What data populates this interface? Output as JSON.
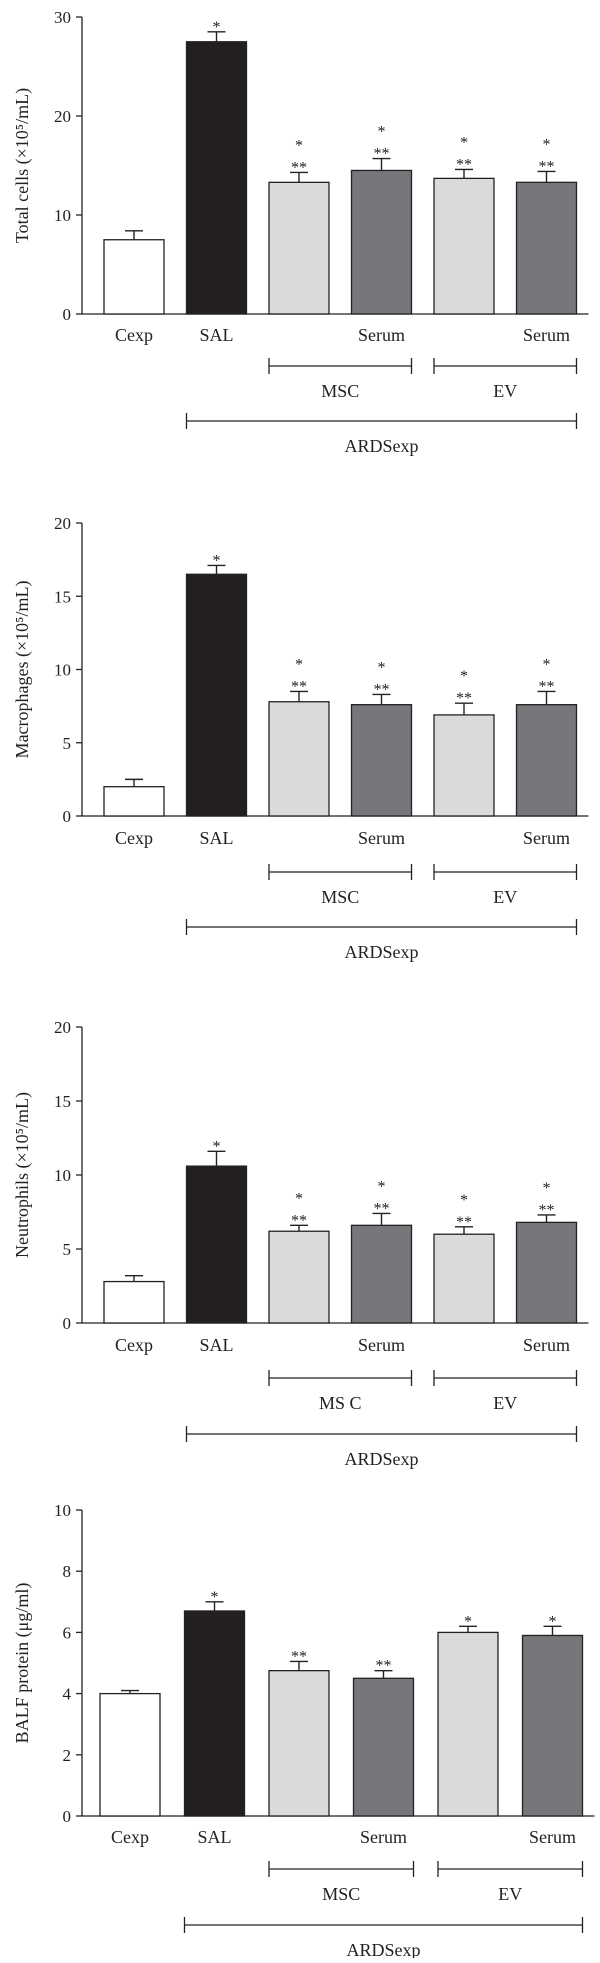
{
  "chart_data": [
    {
      "type": "bar",
      "ylabel": "Total cells (×10⁵/mL)",
      "ylim": [
        0,
        30
      ],
      "yticks": [
        0,
        10,
        20,
        30
      ],
      "categories": [
        "Cexp",
        "SAL",
        "",
        "Serum",
        "",
        "Serum"
      ],
      "values": [
        7.5,
        27.5,
        13.3,
        14.5,
        13.7,
        13.3
      ],
      "errors": [
        0.9,
        1.0,
        1.0,
        1.2,
        0.9,
        1.1
      ],
      "significance": [
        [],
        [
          "*"
        ],
        [
          "*",
          "**"
        ],
        [
          "*",
          "**"
        ],
        [
          "*",
          "**"
        ],
        [
          "*",
          "**"
        ]
      ],
      "colors": [
        "#ffffff",
        "#231f20",
        "#d9dadb",
        "#76777a",
        "#d9dadb",
        "#76777a"
      ],
      "groups": [
        {
          "label": "MSC",
          "from": 2,
          "to": 3,
          "level": 1
        },
        {
          "label": "EV",
          "from": 4,
          "to": 5,
          "level": 1
        },
        {
          "label": "ARDSexp",
          "from": 1,
          "to": 5,
          "level": 2
        }
      ]
    },
    {
      "type": "bar",
      "ylabel": "Macrophages (×10⁵/mL)",
      "ylim": [
        0,
        20
      ],
      "yticks": [
        0,
        5,
        10,
        15,
        20
      ],
      "categories": [
        "Cexp",
        "SAL",
        "",
        "Serum",
        "",
        "Serum"
      ],
      "values": [
        2.0,
        16.5,
        7.8,
        7.6,
        6.9,
        7.6
      ],
      "errors": [
        0.5,
        0.6,
        0.7,
        0.7,
        0.8,
        0.9
      ],
      "significance": [
        [],
        [
          "*"
        ],
        [
          "*",
          "**"
        ],
        [
          "*",
          "**"
        ],
        [
          "*",
          "**"
        ],
        [
          "*",
          "**"
        ]
      ],
      "colors": [
        "#ffffff",
        "#231f20",
        "#d9dadb",
        "#76777a",
        "#d9dadb",
        "#76777a"
      ],
      "groups": [
        {
          "label": "MSC",
          "from": 2,
          "to": 3,
          "level": 1
        },
        {
          "label": "EV",
          "from": 4,
          "to": 5,
          "level": 1
        },
        {
          "label": "ARDSexp",
          "from": 1,
          "to": 5,
          "level": 2
        }
      ]
    },
    {
      "type": "bar",
      "ylabel": "Neutrophils (×10⁵/mL)",
      "ylim": [
        0,
        20
      ],
      "yticks": [
        0,
        5,
        10,
        15,
        20
      ],
      "categories": [
        "Cexp",
        "SAL",
        "",
        "Serum",
        "",
        "Serum"
      ],
      "values": [
        2.8,
        10.6,
        6.2,
        6.6,
        6.0,
        6.8
      ],
      "errors": [
        0.4,
        1.0,
        0.4,
        0.8,
        0.5,
        0.5
      ],
      "significance": [
        [],
        [
          "*"
        ],
        [
          "*",
          "**"
        ],
        [
          "*",
          "**"
        ],
        [
          "*",
          "**"
        ],
        [
          "*",
          "**"
        ]
      ],
      "colors": [
        "#ffffff",
        "#231f20",
        "#d9dadb",
        "#76777a",
        "#d9dadb",
        "#76777a"
      ],
      "groups": [
        {
          "label": "MS C",
          "from": 2,
          "to": 3,
          "level": 1
        },
        {
          "label": "EV",
          "from": 4,
          "to": 5,
          "level": 1
        },
        {
          "label": "ARDSexp",
          "from": 1,
          "to": 5,
          "level": 2
        }
      ]
    },
    {
      "type": "bar",
      "ylabel": "BALF protein (μg/ml)",
      "ylim": [
        0,
        10
      ],
      "yticks": [
        0,
        2,
        4,
        6,
        8,
        10
      ],
      "categories": [
        "Cexp",
        "SAL",
        "",
        "Serum",
        "",
        "Serum"
      ],
      "values": [
        4.0,
        6.7,
        4.75,
        4.5,
        6.0,
        5.9
      ],
      "errors": [
        0.1,
        0.3,
        0.3,
        0.25,
        0.2,
        0.3
      ],
      "significance": [
        [],
        [
          "*"
        ],
        [
          "**"
        ],
        [
          "**"
        ],
        [
          "*"
        ],
        [
          "*"
        ]
      ],
      "colors": [
        "#ffffff",
        "#231f20",
        "#d9dadb",
        "#76777a",
        "#d9dadb",
        "#76777a"
      ],
      "groups": [
        {
          "label": "MSC",
          "from": 2,
          "to": 3,
          "level": 1
        },
        {
          "label": "EV",
          "from": 4,
          "to": 5,
          "level": 1
        },
        {
          "label": "ARDSexp",
          "from": 1,
          "to": 5,
          "level": 2
        }
      ]
    }
  ]
}
